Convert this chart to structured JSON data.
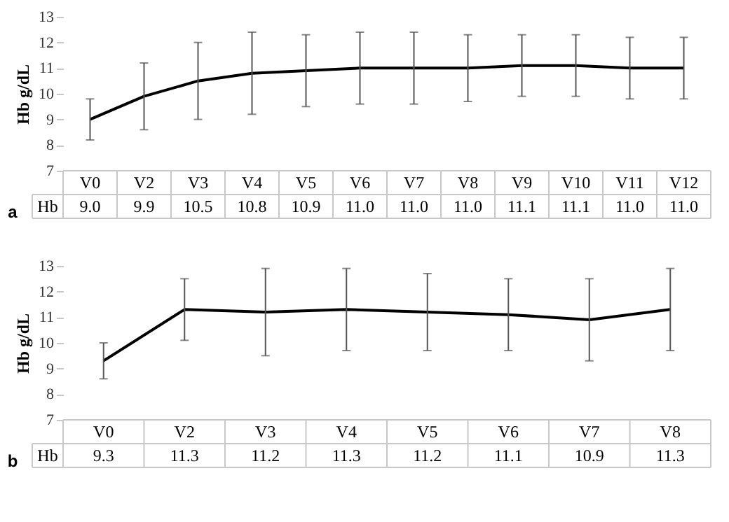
{
  "chart_data": [
    {
      "type": "line",
      "ylabel": "Hb g/dL",
      "color": "#000000",
      "annotations": [
        "Hb",
        "a"
      ],
      "categories": [
        "V0",
        "V2",
        "V3",
        "V4",
        "V5",
        "V6",
        "V7",
        "V8",
        "V9",
        "V10",
        "V11",
        "V12"
      ],
      "values": [
        9.0,
        9.9,
        10.5,
        10.8,
        10.9,
        11.0,
        11.0,
        11.0,
        11.1,
        11.1,
        11.0,
        11.0
      ],
      "value_labels": [
        "9.0",
        "9.9",
        "10.5",
        "10.8",
        "10.9",
        "11.0",
        "11.0",
        "11.0",
        "11.1",
        "11.1",
        "11.0",
        "11.0"
      ],
      "errors": [
        [
          8.2,
          9.8
        ],
        [
          8.6,
          11.2
        ],
        [
          9.0,
          12.0
        ],
        [
          9.2,
          12.4
        ],
        [
          9.5,
          12.3
        ],
        [
          9.6,
          12.4
        ],
        [
          9.6,
          12.4
        ],
        [
          9.7,
          12.3
        ],
        [
          9.9,
          12.3
        ],
        [
          9.9,
          12.3
        ],
        [
          9.8,
          12.2
        ],
        [
          9.8,
          12.2
        ]
      ],
      "ylim": [
        7,
        13
      ],
      "yticks": [
        7,
        8,
        9,
        10,
        11,
        12,
        13
      ]
    },
    {
      "type": "line",
      "ylabel": "Hb g/dL",
      "color": "#000000",
      "annotations": [
        "Hb",
        "b"
      ],
      "categories": [
        "V0",
        "V2",
        "V3",
        "V4",
        "V5",
        "V6",
        "V7",
        "V8"
      ],
      "values": [
        9.3,
        11.3,
        11.2,
        11.3,
        11.2,
        11.1,
        10.9,
        11.3
      ],
      "value_labels": [
        "9.3",
        "11.3",
        "11.2",
        "11.3",
        "11.2",
        "11.1",
        "10.9",
        "11.3"
      ],
      "errors": [
        [
          8.6,
          10.0
        ],
        [
          10.1,
          12.5
        ],
        [
          9.5,
          12.9
        ],
        [
          9.7,
          12.9
        ],
        [
          9.7,
          12.7
        ],
        [
          9.7,
          12.5
        ],
        [
          9.3,
          12.5
        ],
        [
          9.7,
          12.9
        ]
      ],
      "ylim": [
        7,
        13
      ],
      "yticks": [
        7,
        8,
        9,
        10,
        11,
        12,
        13
      ]
    }
  ]
}
